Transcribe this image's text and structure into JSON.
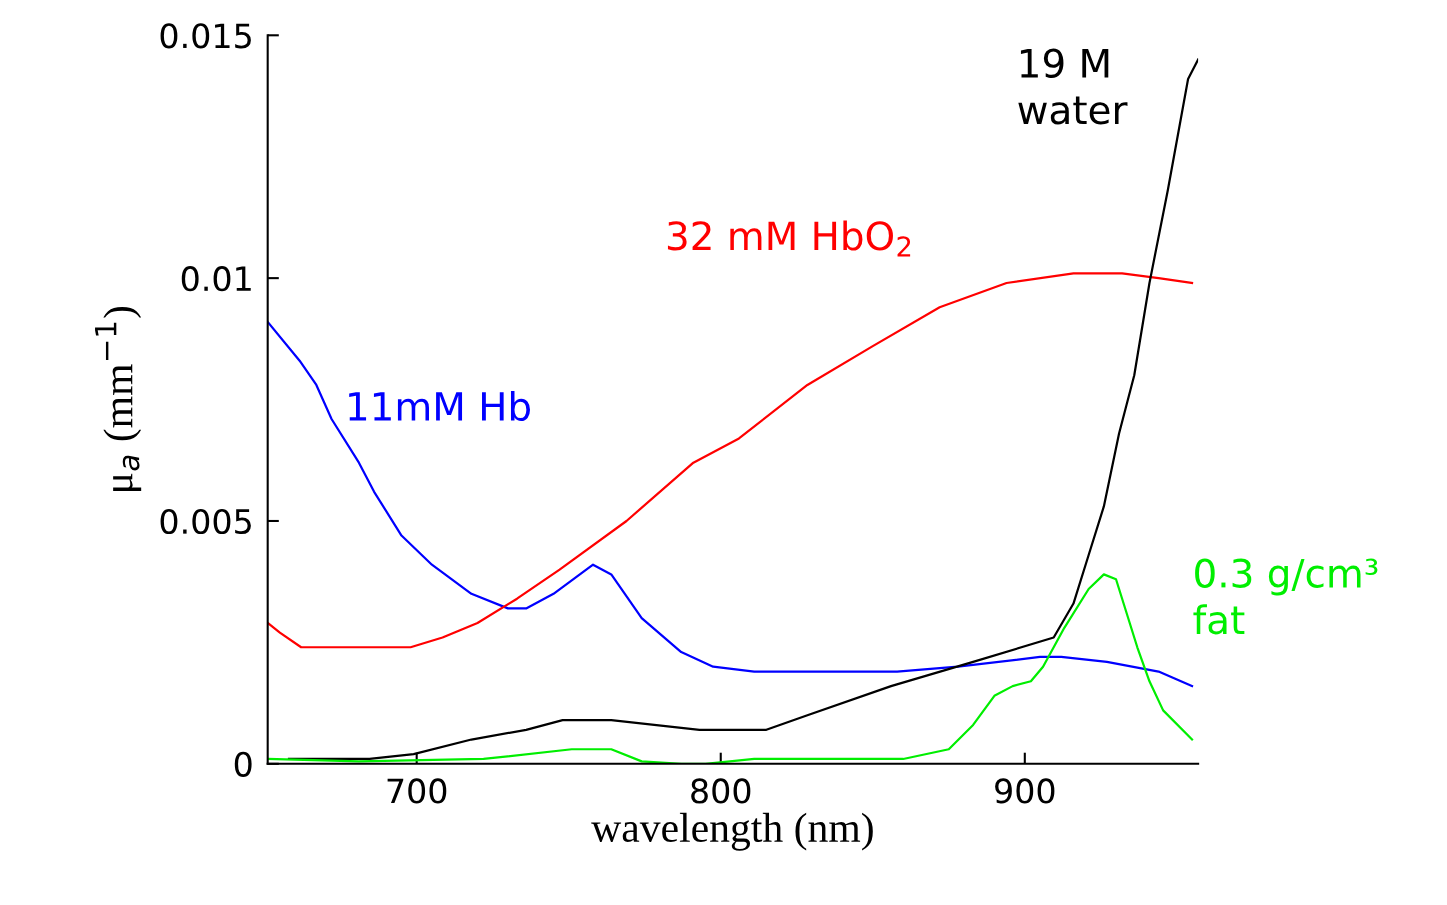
{
  "chart_data": {
    "type": "line",
    "xlabel": "wavelength (nm)",
    "ylabel": "μ$_{a}$ (mm$^{−1}$)",
    "xlim": [
      651,
      957
    ],
    "xticks": [
      700,
      800,
      900
    ],
    "ylim": [
      0,
      0.015
    ],
    "yticks": [
      0,
      0.005,
      0.01,
      0.015
    ],
    "grid": false,
    "legend": false,
    "series": [
      {
        "name": "11mM Hb",
        "color": "#0000ff",
        "x": [
          651,
          661.5,
          667,
          672,
          681,
          686,
          695,
          705,
          718,
          730,
          736,
          745,
          758,
          764,
          774,
          787,
          797.5,
          811,
          813,
          858,
          878,
          905,
          912,
          927,
          944,
          955
        ],
        "values": [
          0.0091,
          0.0083,
          0.0078,
          0.0071,
          0.0062,
          0.0056,
          0.0047,
          0.0041,
          0.0035,
          0.0032,
          0.0032,
          0.0035,
          0.0041,
          0.0039,
          0.003,
          0.0023,
          0.002,
          0.0019,
          0.0019,
          0.0019,
          0.002,
          0.0022,
          0.0022,
          0.0021,
          0.0019,
          0.0016
        ]
      },
      {
        "name": "32 mM HbO$_{2}$",
        "color": "#ff0000",
        "x": [
          651,
          655,
          662,
          684.5,
          698,
          708.5,
          720,
          733,
          747,
          769,
          791,
          806,
          828.5,
          850,
          872,
          894,
          916,
          932,
          944,
          955
        ],
        "values": [
          0.0029,
          0.0027,
          0.0024,
          0.0024,
          0.0024,
          0.0026,
          0.0029,
          0.0034,
          0.004,
          0.005,
          0.0062,
          0.0067,
          0.0078,
          0.0086,
          0.0094,
          0.0099,
          0.0101,
          0.0101,
          0.01,
          0.0099
        ]
      },
      {
        "name": "19 M\nwater",
        "color": "#000000",
        "x": [
          658,
          684.5,
          699,
          718,
          736,
          748,
          764,
          793,
          815,
          828.5,
          856,
          883,
          909.5,
          916,
          921,
          926,
          931,
          936,
          941,
          947,
          953.7,
          957
        ],
        "values": [
          0.0001,
          0.0001,
          0.0002,
          0.0005,
          0.0007,
          0.0009,
          0.0009,
          0.0007,
          0.0007,
          0.001,
          0.0016,
          0.0021,
          0.0026,
          0.0033,
          0.0043,
          0.0053,
          0.0068,
          0.008,
          0.0099,
          0.0118,
          0.0141,
          0.0145
        ]
      },
      {
        "name": "0.3 g/cm³\nfat",
        "color": "#00ee00",
        "x": [
          651,
          681,
          722,
          751,
          764,
          774,
          787,
          795,
          811,
          823,
          860,
          875,
          883,
          890,
          896,
          902,
          906,
          913,
          921,
          926,
          930,
          937,
          941,
          945.5,
          955
        ],
        "values": [
          0.0001,
          5e-05,
          0.0001,
          0.0003,
          0.0003,
          5e-05,
          0,
          0,
          0.0001,
          0.0001,
          0.0001,
          0.0003,
          0.0008,
          0.0014,
          0.0016,
          0.0017,
          0.002,
          0.0028,
          0.0036,
          0.0039,
          0.0038,
          0.0024,
          0.0017,
          0.0011,
          0.0005
        ]
      }
    ]
  }
}
